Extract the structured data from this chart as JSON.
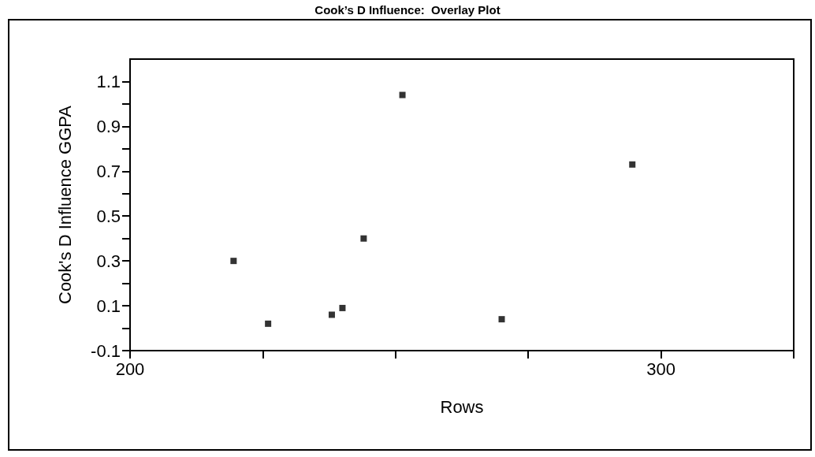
{
  "chart_data": {
    "type": "scatter",
    "title": "Cook’s D Influence:  Overlay Plot",
    "xlabel": "Rows",
    "ylabel": "Cook's D Influence GGPA",
    "x": [
      219.5,
      226,
      238,
      240,
      244,
      251.3,
      270,
      294.6
    ],
    "series": [
      {
        "color": "#000000",
        "values": [
          0.3,
          0.02,
          0.06,
          0.09,
          0.4,
          1.04,
          0.04,
          0.73
        ]
      }
    ],
    "xlim": [
      200,
      325
    ],
    "xticks": [
      200,
      {
        "value": 225,
        "label": null
      },
      {
        "value": 250,
        "label": null
      },
      {
        "value": 275,
        "label": null
      },
      300,
      {
        "value": 325,
        "label": null
      }
    ],
    "ylim": [
      -0.1,
      1.2
    ],
    "yticks": [
      -0.1,
      {
        "value": 0,
        "label": null
      },
      0.1,
      {
        "value": 0.2,
        "label": null
      },
      0.3,
      {
        "value": 0.4,
        "label": null
      },
      0.5,
      {
        "value": 0.6,
        "label": null
      },
      0.7,
      {
        "value": 0.8,
        "label": null
      },
      0.9,
      {
        "value": 1.0,
        "label": null
      },
      1.1
    ],
    "grid": false,
    "marker": "square"
  }
}
